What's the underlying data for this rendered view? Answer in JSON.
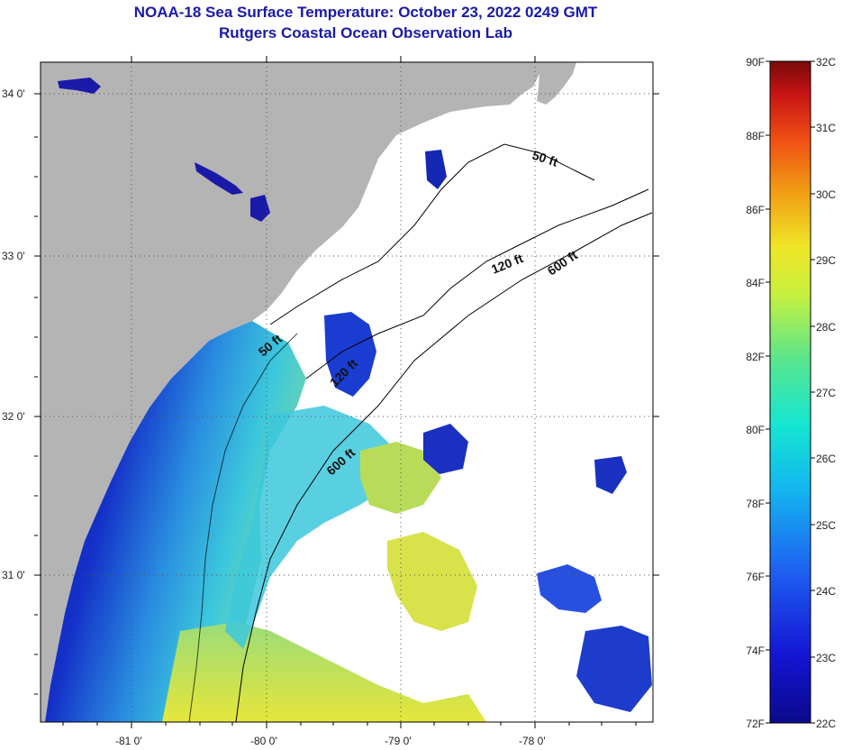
{
  "title": {
    "line1": "NOAA-18 Sea Surface Temperature:  October 23, 2022 0249 GMT",
    "line2": "Rutgers Coastal Ocean Observation Lab"
  },
  "map": {
    "lon_labels": [
      "-81 0'",
      "-80 0'",
      "-79 0'",
      "-78 0'"
    ],
    "lat_labels": [
      "34 0'",
      "33 0'",
      "32 0'",
      "31 0'"
    ],
    "contours": [
      "50 ft",
      "120 ft",
      "600 ft",
      "50 ft",
      "120 ft",
      "600 ft"
    ]
  },
  "colorbar": {
    "fahrenheit": [
      "90F",
      "88F",
      "86F",
      "84F",
      "82F",
      "80F",
      "78F",
      "76F",
      "74F",
      "72F"
    ],
    "celsius": [
      "32C",
      "31C",
      "30C",
      "29C",
      "28C",
      "27C",
      "26C",
      "25C",
      "24C",
      "23C",
      "22C"
    ]
  },
  "colors": {
    "land": "#b4b4b4",
    "title": "#1a1aa8",
    "cold": "#0a1a9a",
    "warm": "#e8e838"
  }
}
